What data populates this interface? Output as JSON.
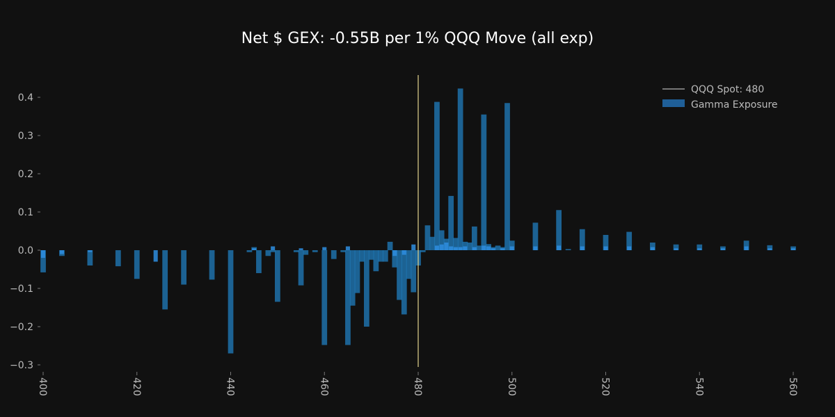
{
  "chart_data": {
    "type": "bar",
    "title": "Net $ GEX: -0.55B per 1% QQQ Move (all exp)",
    "xlabel": "",
    "ylabel": "",
    "xlim": [
      400,
      560
    ],
    "ylim": [
      -0.3,
      0.45
    ],
    "x_ticks": [
      400,
      420,
      440,
      460,
      480,
      500,
      520,
      540,
      560
    ],
    "y_ticks": [
      -0.3,
      -0.2,
      -0.1,
      0.0,
      0.1,
      0.2,
      0.3,
      0.4
    ],
    "y_tick_labels": [
      "−0.3",
      "−0.2",
      "−0.1",
      "0.0",
      "0.1",
      "0.2",
      "0.3",
      "0.4"
    ],
    "grid": false,
    "legend_position": "top-right",
    "legend": [
      {
        "label": "QQQ Spot: 480",
        "marker": "line"
      },
      {
        "label": "Gamma Exposure",
        "marker": "patch"
      }
    ],
    "spot": 480,
    "colors": {
      "background": "#111111",
      "bar": "#1f77b4",
      "bar_overlay": "#2e8ee0",
      "spot_line": "#e3d58f",
      "text": "#bbbbbb",
      "title": "#ffffff"
    },
    "series": [
      {
        "name": "Gamma Exposure",
        "x": [
          400,
          402,
          404,
          406,
          408,
          410,
          412,
          414,
          416,
          418,
          420,
          422,
          424,
          426,
          428,
          430,
          432,
          434,
          436,
          438,
          440,
          442,
          444,
          445,
          446,
          448,
          449,
          450,
          452,
          454,
          455,
          456,
          458,
          460,
          462,
          464,
          465,
          466,
          467,
          468,
          469,
          470,
          471,
          472,
          473,
          474,
          475,
          476,
          477,
          478,
          479,
          480,
          481,
          482,
          483,
          484,
          485,
          486,
          487,
          488,
          489,
          490,
          491,
          492,
          493,
          494,
          495,
          496,
          497,
          498,
          499,
          500,
          505,
          510,
          512,
          515,
          520,
          525,
          530,
          535,
          540,
          545,
          550,
          555,
          560
        ],
        "values": [
          -0.058,
          0.0,
          -0.015,
          0.0,
          0.0,
          -0.04,
          0.0,
          0.0,
          -0.042,
          0.0,
          -0.075,
          0.0,
          0.0,
          -0.155,
          0.0,
          -0.09,
          0.0,
          0.0,
          -0.077,
          0.0,
          -0.27,
          0.0,
          -0.005,
          0.008,
          -0.06,
          -0.015,
          -0.005,
          -0.135,
          0.0,
          -0.005,
          -0.092,
          -0.012,
          -0.005,
          -0.248,
          -0.023,
          -0.005,
          -0.248,
          -0.145,
          -0.112,
          -0.03,
          -0.2,
          -0.025,
          -0.055,
          -0.03,
          -0.03,
          0.022,
          -0.045,
          -0.13,
          -0.168,
          -0.075,
          -0.11,
          -0.04,
          -0.005,
          0.065,
          0.035,
          0.388,
          0.052,
          0.03,
          0.142,
          0.032,
          0.423,
          0.022,
          0.02,
          0.062,
          0.012,
          0.355,
          0.016,
          0.008,
          0.012,
          0.008,
          0.385,
          0.025,
          0.072,
          0.105,
          0.003,
          0.055,
          0.04,
          0.048,
          0.02,
          0.015,
          0.015,
          0.01,
          0.025,
          0.013,
          0.01
        ]
      },
      {
        "name": "",
        "x": [
          400,
          404,
          410,
          424,
          445,
          449,
          455,
          460,
          465,
          475,
          477,
          479,
          480,
          484,
          485,
          486,
          487,
          488,
          489,
          490,
          492,
          494,
          495,
          496,
          498,
          500,
          505,
          510,
          515,
          520,
          525,
          530,
          535,
          540,
          545,
          550,
          555,
          560
        ],
        "values": [
          -0.02,
          -0.01,
          -0.005,
          -0.03,
          0.005,
          0.01,
          0.005,
          0.008,
          0.01,
          -0.015,
          -0.012,
          0.015,
          0.0,
          0.012,
          0.015,
          0.02,
          0.01,
          0.008,
          0.008,
          0.01,
          0.008,
          0.012,
          0.01,
          0.005,
          0.005,
          0.01,
          0.01,
          0.012,
          0.01,
          0.01,
          0.01,
          0.008,
          0.005,
          0.005,
          0.005,
          0.01,
          0.005,
          0.005
        ]
      }
    ]
  }
}
